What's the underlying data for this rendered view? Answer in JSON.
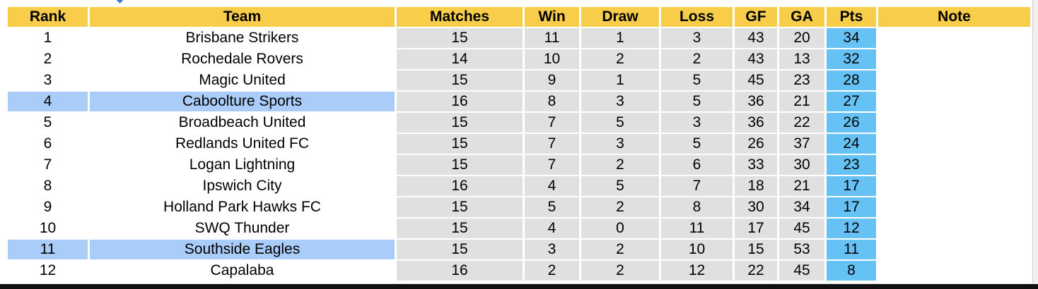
{
  "headers": [
    "Rank",
    "Team",
    "Matches",
    "Win",
    "Draw",
    "Loss",
    "GF",
    "GA",
    "Pts",
    "Note"
  ],
  "colors": {
    "header": "#f7cd4a",
    "stat_cell": "#e0e0e0",
    "pts_cell": "#66c2f5",
    "highlight": "#a9ccf8"
  },
  "rows": [
    {
      "rank": "1",
      "team": "Brisbane Strikers",
      "matches": "15",
      "win": "11",
      "draw": "1",
      "loss": "3",
      "gf": "43",
      "ga": "20",
      "pts": "34",
      "note": "",
      "highlighted": false
    },
    {
      "rank": "2",
      "team": "Rochedale Rovers",
      "matches": "14",
      "win": "10",
      "draw": "2",
      "loss": "2",
      "gf": "43",
      "ga": "13",
      "pts": "32",
      "note": "",
      "highlighted": false
    },
    {
      "rank": "3",
      "team": "Magic United",
      "matches": "15",
      "win": "9",
      "draw": "1",
      "loss": "5",
      "gf": "45",
      "ga": "23",
      "pts": "28",
      "note": "",
      "highlighted": false
    },
    {
      "rank": "4",
      "team": "Caboolture Sports",
      "matches": "16",
      "win": "8",
      "draw": "3",
      "loss": "5",
      "gf": "36",
      "ga": "21",
      "pts": "27",
      "note": "",
      "highlighted": true
    },
    {
      "rank": "5",
      "team": "Broadbeach United",
      "matches": "15",
      "win": "7",
      "draw": "5",
      "loss": "3",
      "gf": "36",
      "ga": "22",
      "pts": "26",
      "note": "",
      "highlighted": false
    },
    {
      "rank": "6",
      "team": "Redlands United FC",
      "matches": "15",
      "win": "7",
      "draw": "3",
      "loss": "5",
      "gf": "26",
      "ga": "37",
      "pts": "24",
      "note": "",
      "highlighted": false
    },
    {
      "rank": "7",
      "team": "Logan Lightning",
      "matches": "15",
      "win": "7",
      "draw": "2",
      "loss": "6",
      "gf": "33",
      "ga": "30",
      "pts": "23",
      "note": "",
      "highlighted": false
    },
    {
      "rank": "8",
      "team": "Ipswich City",
      "matches": "16",
      "win": "4",
      "draw": "5",
      "loss": "7",
      "gf": "18",
      "ga": "21",
      "pts": "17",
      "note": "",
      "highlighted": false
    },
    {
      "rank": "9",
      "team": "Holland Park Hawks FC",
      "matches": "15",
      "win": "5",
      "draw": "2",
      "loss": "8",
      "gf": "30",
      "ga": "34",
      "pts": "17",
      "note": "",
      "highlighted": false
    },
    {
      "rank": "10",
      "team": "SWQ Thunder",
      "matches": "15",
      "win": "4",
      "draw": "0",
      "loss": "11",
      "gf": "17",
      "ga": "45",
      "pts": "12",
      "note": "",
      "highlighted": false
    },
    {
      "rank": "11",
      "team": "Southside Eagles",
      "matches": "15",
      "win": "3",
      "draw": "2",
      "loss": "10",
      "gf": "15",
      "ga": "53",
      "pts": "11",
      "note": "",
      "highlighted": true
    },
    {
      "rank": "12",
      "team": "Capalaba",
      "matches": "16",
      "win": "2",
      "draw": "2",
      "loss": "12",
      "gf": "22",
      "ga": "45",
      "pts": "8",
      "note": "",
      "highlighted": false
    }
  ]
}
